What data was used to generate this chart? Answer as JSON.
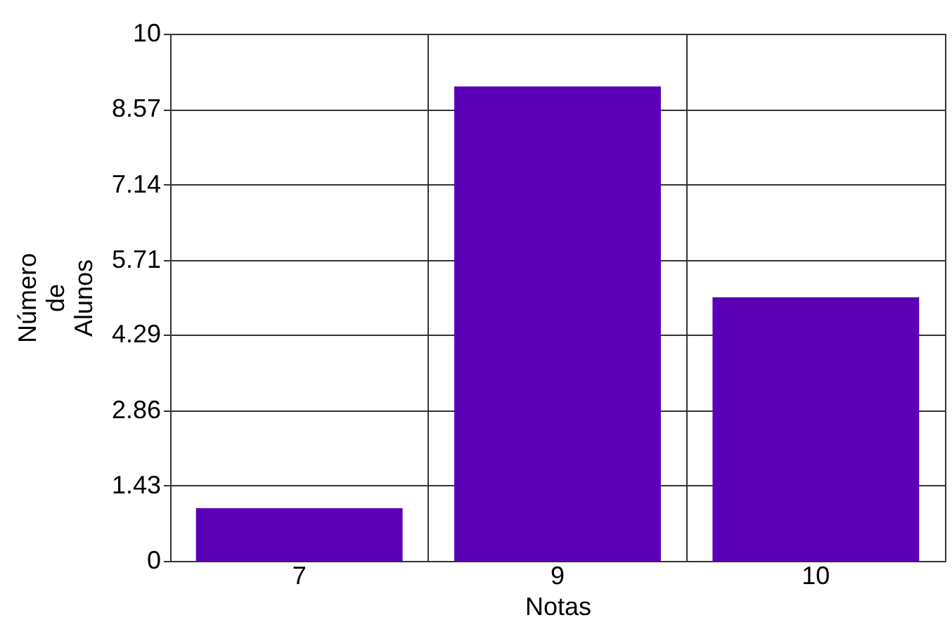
{
  "chart_data": {
    "type": "bar",
    "xlabel": "Notas",
    "ylabel": "Número de Alunos",
    "categories": [
      "7",
      "9",
      "10"
    ],
    "values": [
      1,
      9,
      5
    ],
    "color": "#5c00b8",
    "ylim": [
      0,
      10
    ],
    "yticks": [
      0,
      1.43,
      2.86,
      4.29,
      5.71,
      7.14,
      8.57,
      10
    ],
    "grid": true
  }
}
